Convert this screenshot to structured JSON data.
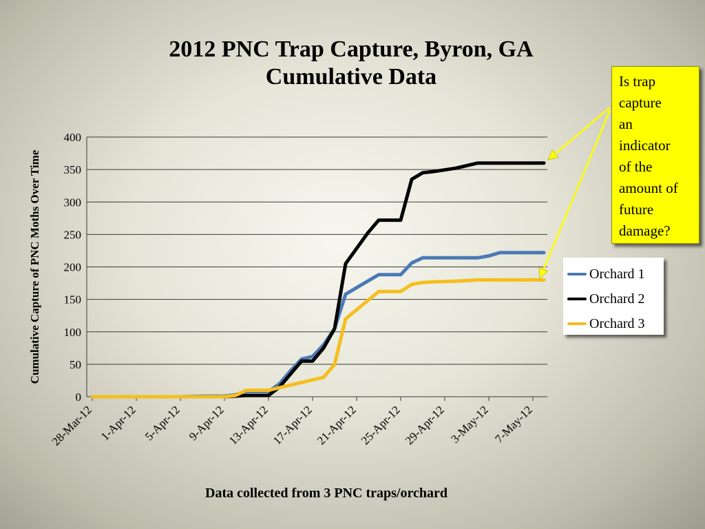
{
  "title_line1": "2012 PNC Trap Capture, Byron, GA",
  "title_line2": "Cumulative Data",
  "callout_lines": [
    "Is trap",
    "capture",
    "an",
    "indicator",
    "of the",
    "amount of",
    "future",
    "damage?"
  ],
  "colors": {
    "callout_bg": "#ffff00",
    "arrow": "#ffff00"
  },
  "chart_data": {
    "type": "line",
    "ylabel": "Cumulative Capture of PNC Moths Over Time",
    "xlabel": "Data collected from 3 PNC traps/orchard",
    "ylim": [
      0,
      400
    ],
    "yticks": [
      0,
      50,
      100,
      150,
      200,
      250,
      300,
      350,
      400
    ],
    "x_tick_labels": [
      "28-Mar-12",
      "1-Apr-12",
      "5-Apr-12",
      "9-Apr-12",
      "13-Apr-12",
      "17-Apr-12",
      "21-Apr-12",
      "25-Apr-12",
      "29-Apr-12",
      "3-May-12",
      "7-May-12"
    ],
    "grid": true,
    "legend_position": "right",
    "series": [
      {
        "name": "Orchard 1",
        "color": "#4a7ab5",
        "x": [
          "28-Mar-12",
          "1-Apr-12",
          "5-Apr-12",
          "7-Apr-12",
          "9-Apr-12",
          "10-Apr-12",
          "11-Apr-12",
          "12-Apr-12",
          "13-Apr-12",
          "14-Apr-12",
          "15-Apr-12",
          "16-Apr-12",
          "17-Apr-12",
          "18-Apr-12",
          "19-Apr-12",
          "20-Apr-12",
          "22-Apr-12",
          "23-Apr-12",
          "24-Apr-12",
          "25-Apr-12",
          "26-Apr-12",
          "27-Apr-12",
          "28-Apr-12",
          "30-Apr-12",
          "2-May-12",
          "3-May-12",
          "4-May-12",
          "6-May-12",
          "8-May-12"
        ],
        "values": [
          0,
          0,
          0,
          1,
          1,
          3,
          8,
          8,
          8,
          20,
          40,
          58,
          62,
          80,
          105,
          158,
          178,
          188,
          188,
          188,
          206,
          214,
          214,
          214,
          214,
          217,
          222,
          222,
          222
        ]
      },
      {
        "name": "Orchard 2",
        "color": "#000000",
        "x": [
          "28-Mar-12",
          "1-Apr-12",
          "5-Apr-12",
          "7-Apr-12",
          "9-Apr-12",
          "10-Apr-12",
          "11-Apr-12",
          "12-Apr-12",
          "13-Apr-12",
          "14-Apr-12",
          "15-Apr-12",
          "16-Apr-12",
          "17-Apr-12",
          "18-Apr-12",
          "19-Apr-12",
          "20-Apr-12",
          "22-Apr-12",
          "23-Apr-12",
          "24-Apr-12",
          "25-Apr-12",
          "26-Apr-12",
          "27-Apr-12",
          "28-Apr-12",
          "30-Apr-12",
          "2-May-12",
          "3-May-12",
          "4-May-12",
          "6-May-12",
          "8-May-12"
        ],
        "values": [
          0,
          0,
          0,
          0,
          0,
          1,
          2,
          2,
          2,
          15,
          35,
          55,
          55,
          75,
          105,
          205,
          252,
          272,
          272,
          272,
          335,
          345,
          347,
          352,
          360,
          360,
          360,
          360,
          360
        ]
      },
      {
        "name": "Orchard 3",
        "color": "#f5be1f",
        "x": [
          "28-Mar-12",
          "1-Apr-12",
          "5-Apr-12",
          "7-Apr-12",
          "9-Apr-12",
          "10-Apr-12",
          "11-Apr-12",
          "12-Apr-12",
          "13-Apr-12",
          "14-Apr-12",
          "15-Apr-12",
          "16-Apr-12",
          "17-Apr-12",
          "18-Apr-12",
          "19-Apr-12",
          "20-Apr-12",
          "22-Apr-12",
          "23-Apr-12",
          "24-Apr-12",
          "25-Apr-12",
          "26-Apr-12",
          "27-Apr-12",
          "28-Apr-12",
          "30-Apr-12",
          "2-May-12",
          "3-May-12",
          "4-May-12",
          "6-May-12",
          "8-May-12"
        ],
        "values": [
          0,
          0,
          0,
          0,
          0,
          2,
          10,
          10,
          10,
          14,
          18,
          22,
          26,
          30,
          50,
          120,
          148,
          162,
          162,
          162,
          173,
          176,
          177,
          178,
          180,
          180,
          180,
          180,
          180
        ]
      }
    ]
  }
}
